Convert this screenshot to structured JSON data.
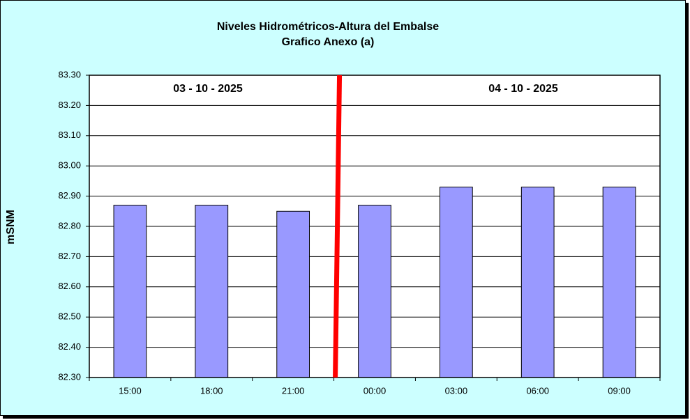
{
  "chart_data": {
    "type": "bar",
    "title": "Niveles Hidrométricos-Altura del Embalse",
    "subtitle": "Grafico Anexo (a)",
    "y_label": "mSNM",
    "annotations": [
      "03 - 10 - 2025",
      "04 - 10 - 2025"
    ],
    "categories": [
      "15:00",
      "18:00",
      "21:00",
      "00:00",
      "03:00",
      "06:00",
      "09:00"
    ],
    "values": [
      82.87,
      82.87,
      82.85,
      82.87,
      82.93,
      82.93,
      82.93
    ],
    "color": "#9999ff",
    "ylim": [
      82.3,
      83.3
    ],
    "yticks": [
      {
        "value": 82.3,
        "label": "82.30"
      },
      {
        "value": 82.4,
        "label": "82.40"
      },
      {
        "value": 82.5,
        "label": "82.50"
      },
      {
        "value": 82.6,
        "label": "82.60"
      },
      {
        "value": 82.7,
        "label": "82.70"
      },
      {
        "value": 82.8,
        "label": "82.80"
      },
      {
        "value": 82.9,
        "label": "82.90"
      },
      {
        "value": 83.0,
        "label": "83.00"
      },
      {
        "value": 83.1,
        "label": "83.10"
      },
      {
        "value": 83.2,
        "label": "83.20"
      },
      {
        "value": 83.3,
        "label": "83.30"
      }
    ],
    "grid": true
  }
}
